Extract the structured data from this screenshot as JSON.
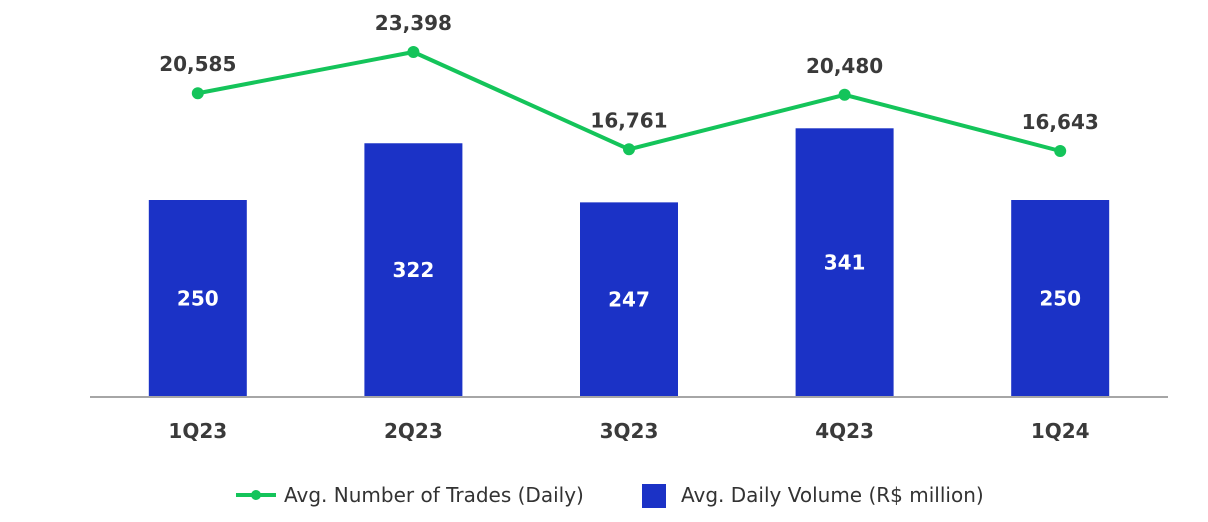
{
  "chart_data": {
    "type": "bar",
    "categories": [
      "1Q23",
      "2Q23",
      "3Q23",
      "4Q23",
      "1Q24"
    ],
    "series": [
      {
        "name": "Avg. Daily Volume (R$ million)",
        "type": "bar",
        "values": [
          250,
          322,
          247,
          341,
          250
        ],
        "labels": [
          "250",
          "322",
          "247",
          "341",
          "250"
        ],
        "color": "#1b32c6"
      },
      {
        "name": "Avg. Number of Trades (Daily)",
        "type": "line",
        "values": [
          20585,
          23398,
          16761,
          20480,
          16643
        ],
        "labels": [
          "20,585",
          "23,398",
          "16,761",
          "20,480",
          "16,643"
        ],
        "color": "#14c45a"
      }
    ],
    "legend": {
      "position": "bottom",
      "items": [
        "Avg. Number of Trades (Daily)",
        "Avg. Daily Volume (R$ million)"
      ]
    },
    "axis_color": "#a6a6a6",
    "grid": false
  }
}
